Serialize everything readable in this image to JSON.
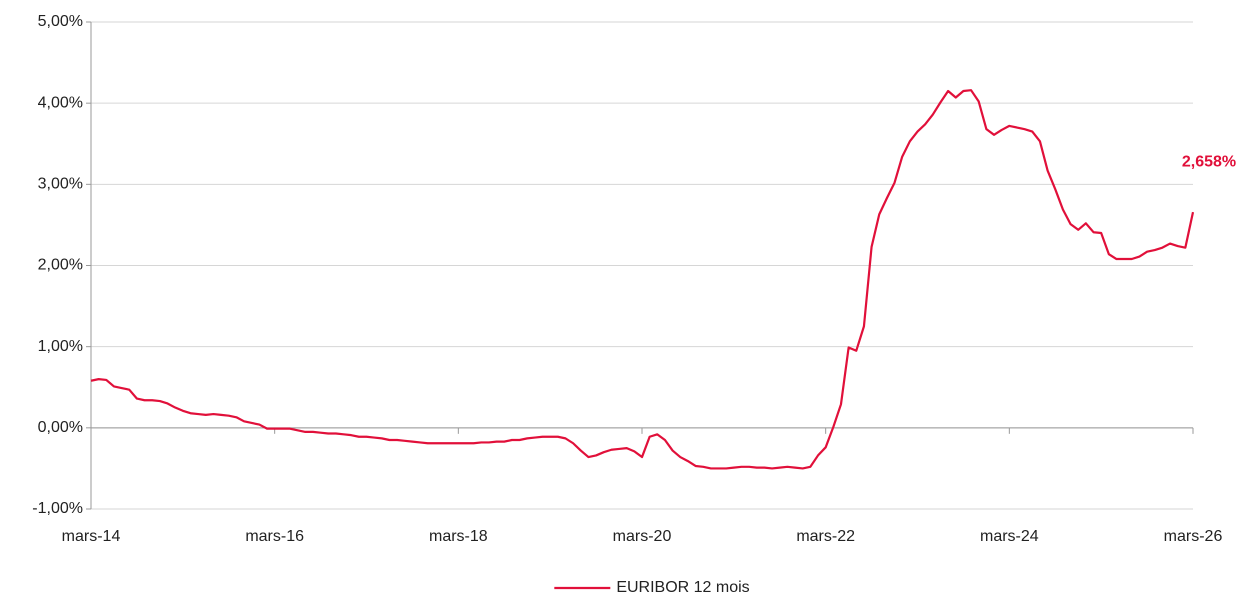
{
  "chart_data": {
    "type": "line",
    "x": [
      "2014-03",
      "2014-04",
      "2014-05",
      "2014-06",
      "2014-07",
      "2014-08",
      "2014-09",
      "2014-10",
      "2014-11",
      "2014-12",
      "2015-01",
      "2015-02",
      "2015-03",
      "2015-04",
      "2015-05",
      "2015-06",
      "2015-07",
      "2015-08",
      "2015-09",
      "2015-10",
      "2015-11",
      "2015-12",
      "2016-01",
      "2016-02",
      "2016-03",
      "2016-04",
      "2016-05",
      "2016-06",
      "2016-07",
      "2016-08",
      "2016-09",
      "2016-10",
      "2016-11",
      "2016-12",
      "2017-01",
      "2017-02",
      "2017-03",
      "2017-04",
      "2017-05",
      "2017-06",
      "2017-07",
      "2017-08",
      "2017-09",
      "2017-10",
      "2017-11",
      "2017-12",
      "2018-01",
      "2018-02",
      "2018-03",
      "2018-04",
      "2018-05",
      "2018-06",
      "2018-07",
      "2018-08",
      "2018-09",
      "2018-10",
      "2018-11",
      "2018-12",
      "2019-01",
      "2019-02",
      "2019-03",
      "2019-04",
      "2019-05",
      "2019-06",
      "2019-07",
      "2019-08",
      "2019-09",
      "2019-10",
      "2019-11",
      "2019-12",
      "2020-01",
      "2020-02",
      "2020-03",
      "2020-04",
      "2020-05",
      "2020-06",
      "2020-07",
      "2020-08",
      "2020-09",
      "2020-10",
      "2020-11",
      "2020-12",
      "2021-01",
      "2021-02",
      "2021-03",
      "2021-04",
      "2021-05",
      "2021-06",
      "2021-07",
      "2021-08",
      "2021-09",
      "2021-10",
      "2021-11",
      "2021-12",
      "2022-01",
      "2022-02",
      "2022-03",
      "2022-04",
      "2022-05",
      "2022-06",
      "2022-07",
      "2022-08",
      "2022-09",
      "2022-10",
      "2022-11",
      "2022-12",
      "2023-01",
      "2023-02",
      "2023-03",
      "2023-04",
      "2023-05",
      "2023-06",
      "2023-07",
      "2023-08",
      "2023-09",
      "2023-10",
      "2023-11",
      "2023-12",
      "2024-01",
      "2024-02",
      "2024-03",
      "2024-04",
      "2024-05",
      "2024-06",
      "2024-07",
      "2024-08",
      "2024-09",
      "2024-10",
      "2024-11",
      "2024-12",
      "2025-01",
      "2025-02",
      "2025-03",
      "2025-04",
      "2025-05",
      "2025-06",
      "2025-07",
      "2025-08",
      "2025-09",
      "2025-10",
      "2025-11",
      "2025-12",
      "2026-01",
      "2026-02",
      "2026-03"
    ],
    "series": [
      {
        "name": "EURIBOR 12 mois",
        "color": "#e1103a",
        "values": [
          0.58,
          0.6,
          0.59,
          0.51,
          0.49,
          0.47,
          0.36,
          0.34,
          0.34,
          0.33,
          0.3,
          0.25,
          0.21,
          0.18,
          0.17,
          0.16,
          0.17,
          0.16,
          0.15,
          0.13,
          0.08,
          0.06,
          0.04,
          -0.01,
          -0.01,
          -0.01,
          -0.01,
          -0.03,
          -0.05,
          -0.05,
          -0.06,
          -0.07,
          -0.07,
          -0.08,
          -0.09,
          -0.11,
          -0.11,
          -0.12,
          -0.13,
          -0.15,
          -0.15,
          -0.16,
          -0.17,
          -0.18,
          -0.19,
          -0.19,
          -0.19,
          -0.19,
          -0.19,
          -0.19,
          -0.19,
          -0.18,
          -0.18,
          -0.17,
          -0.17,
          -0.15,
          -0.15,
          -0.13,
          -0.12,
          -0.11,
          -0.11,
          -0.11,
          -0.13,
          -0.19,
          -0.28,
          -0.36,
          -0.34,
          -0.3,
          -0.27,
          -0.26,
          -0.25,
          -0.29,
          -0.36,
          -0.11,
          -0.08,
          -0.15,
          -0.28,
          -0.36,
          -0.41,
          -0.47,
          -0.48,
          -0.5,
          -0.5,
          -0.5,
          -0.49,
          -0.48,
          -0.48,
          -0.49,
          -0.49,
          -0.5,
          -0.49,
          -0.48,
          -0.49,
          -0.5,
          -0.48,
          -0.34,
          -0.24,
          0.01,
          0.29,
          0.99,
          0.95,
          1.25,
          2.23,
          2.63,
          2.83,
          3.02,
          3.34,
          3.53,
          3.65,
          3.74,
          3.86,
          4.01,
          4.15,
          4.07,
          4.15,
          4.16,
          4.02,
          3.68,
          3.61,
          3.67,
          3.72,
          3.7,
          3.68,
          3.65,
          3.53,
          3.17,
          2.94,
          2.69,
          2.51,
          2.44,
          2.52,
          2.41,
          2.4,
          2.14,
          2.08,
          2.08,
          2.08,
          2.11,
          2.17,
          2.19,
          2.22,
          2.27,
          2.24,
          2.22,
          2.658
        ],
        "value_labels": [
          null,
          null,
          null,
          null,
          null,
          null,
          null,
          null,
          null,
          null,
          null,
          null,
          null,
          null,
          null,
          null,
          null,
          null,
          null,
          null,
          null,
          null,
          null,
          null,
          null,
          null,
          null,
          null,
          null,
          null,
          null,
          null,
          null,
          null,
          null,
          null,
          null,
          null,
          null,
          null,
          null,
          null,
          null,
          null,
          null,
          null,
          null,
          null,
          null,
          null,
          null,
          null,
          null,
          null,
          null,
          null,
          null,
          null,
          null,
          null,
          null,
          null,
          null,
          null,
          null,
          null,
          null,
          null,
          null,
          null,
          null,
          null,
          null,
          null,
          null,
          null,
          null,
          null,
          null,
          null,
          null,
          null,
          null,
          null,
          null,
          null,
          null,
          null,
          null,
          null,
          null,
          null,
          null,
          null,
          null,
          null,
          null,
          null,
          null,
          null,
          null,
          null,
          null,
          null,
          null,
          null,
          null,
          null,
          null,
          null,
          null,
          null,
          null,
          null,
          null,
          null,
          null,
          null,
          null,
          null,
          null,
          null,
          null,
          null,
          null,
          null,
          null,
          null,
          null,
          null,
          null,
          null,
          null,
          null,
          null,
          null,
          null,
          null,
          null,
          null,
          null,
          null,
          null,
          null,
          "2,658%"
        ]
      }
    ],
    "xlim": [
      "2014-03",
      "2026-03"
    ],
    "xticks": [
      {
        "value": "2014-03",
        "label": "mars-14"
      },
      {
        "value": "2016-03",
        "label": "mars-16"
      },
      {
        "value": "2018-03",
        "label": "mars-18"
      },
      {
        "value": "2020-03",
        "label": "mars-20"
      },
      {
        "value": "2022-03",
        "label": "mars-22"
      },
      {
        "value": "2024-03",
        "label": "mars-24"
      },
      {
        "value": "2026-03",
        "label": "mars-26"
      }
    ],
    "ylim": [
      -1,
      5
    ],
    "yticks": [
      {
        "value": -1,
        "label": "-1,00%"
      },
      {
        "value": 0,
        "label": "0,00%"
      },
      {
        "value": 1,
        "label": "1,00%"
      },
      {
        "value": 2,
        "label": "2,00%"
      },
      {
        "value": 3,
        "label": "3,00%"
      },
      {
        "value": 4,
        "label": "4,00%"
      },
      {
        "value": 5,
        "label": "5,00%"
      }
    ],
    "grid": true,
    "legend": "bottom"
  }
}
